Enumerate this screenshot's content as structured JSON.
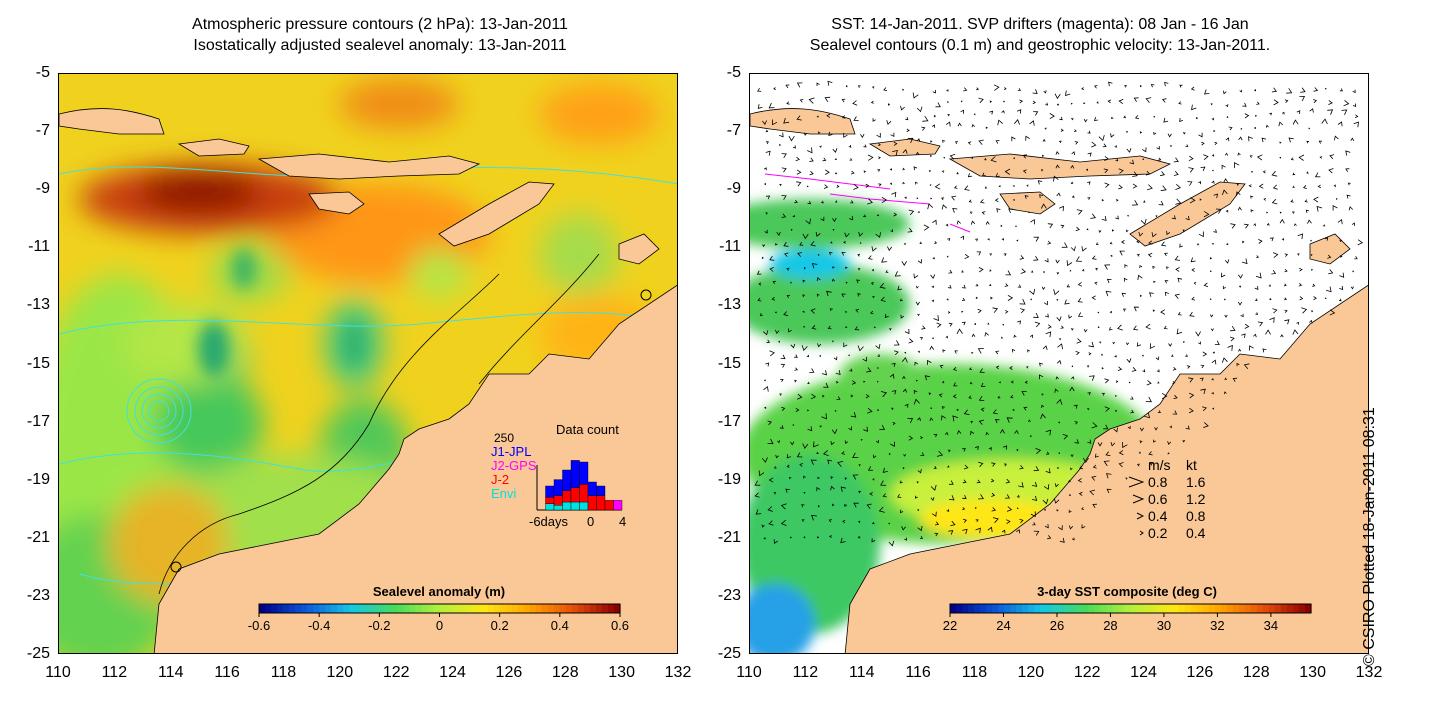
{
  "left_panel": {
    "title_line1": "Atmospheric pressure contours (2 hPa): 13-Jan-2011",
    "title_line2": "Isostatically adjusted sealevel anomaly: 13-Jan-2011",
    "colorbar": {
      "label": "Sealevel anomaly (m)",
      "ticks": [
        "-0.6",
        "-0.4",
        "-0.2",
        "0",
        "0.2",
        "0.4",
        "0.6"
      ],
      "range": [
        -0.6,
        0.6
      ],
      "colors": [
        "#00008b",
        "#0a5adc",
        "#14c8e6",
        "#46dc5a",
        "#b4f03c",
        "#ffe614",
        "#ffa500",
        "#e6500a",
        "#8b0000"
      ]
    },
    "data_count": {
      "title": "Data count",
      "max_label": "250",
      "series": [
        {
          "name": "J1-JPL",
          "color": "#0000ff"
        },
        {
          "name": "J2-GPS",
          "color": "#ff00ff"
        },
        {
          "name": "J-2",
          "color": "#ff0000"
        },
        {
          "name": "Envi",
          "color": "#00e0e0"
        }
      ],
      "x_labels": [
        "-6days",
        "0",
        "4"
      ],
      "days": [
        -6,
        -5,
        -4,
        -3,
        -2,
        -1,
        0,
        1,
        2,
        3
      ],
      "j1": [
        0,
        70,
        100,
        130,
        170,
        140,
        85,
        60,
        0,
        0
      ],
      "j2": [
        0,
        0,
        0,
        0,
        0,
        0,
        0,
        0,
        0,
        60
      ],
      "j2b": [
        0,
        40,
        60,
        70,
        90,
        110,
        90,
        90,
        60,
        0
      ],
      "envi": [
        0,
        40,
        30,
        50,
        50,
        50,
        0,
        0,
        0,
        0
      ]
    }
  },
  "right_panel": {
    "title_line1": "SST: 14-Jan-2011. SVP drifters (magenta): 08 Jan - 16 Jan",
    "title_line2": "Sealevel contours (0.1 m) and geostrophic velocity: 13-Jan-2011.",
    "colorbar": {
      "label": "3-day SST composite (deg C)",
      "ticks": [
        "22",
        "24",
        "26",
        "28",
        "30",
        "32",
        "34"
      ],
      "range": [
        22,
        35.5
      ],
      "colors": [
        "#00008b",
        "#0a5adc",
        "#14c8e6",
        "#46dc5a",
        "#b4f03c",
        "#ffe614",
        "#ffa500",
        "#e6500a",
        "#8b0000"
      ]
    },
    "velocity_legend": {
      "header_ms": "m/s",
      "header_kt": "kt",
      "rows": [
        {
          "ms": "0.8",
          "kt": "1.6"
        },
        {
          "ms": "0.6",
          "kt": "1.2"
        },
        {
          "ms": "0.4",
          "kt": "0.8"
        },
        {
          "ms": "0.2",
          "kt": "0.4"
        }
      ]
    }
  },
  "axes": {
    "lon_labels": [
      "110",
      "112",
      "114",
      "116",
      "118",
      "120",
      "122",
      "124",
      "126",
      "128",
      "130",
      "132"
    ],
    "lat_labels": [
      "-5",
      "-7",
      "-9",
      "-11",
      "-13",
      "-15",
      "-17",
      "-19",
      "-21",
      "-23",
      "-25"
    ],
    "lon_range": [
      110,
      132
    ],
    "lat_range": [
      -25,
      -5
    ]
  },
  "credit": "© CSIRO Plotted 18-Jan-2011 08:31",
  "colors": {
    "land": "#fac896",
    "coast": "#000000",
    "pressure_contour": "#40e0e0",
    "drifter": "#ff00ff"
  }
}
